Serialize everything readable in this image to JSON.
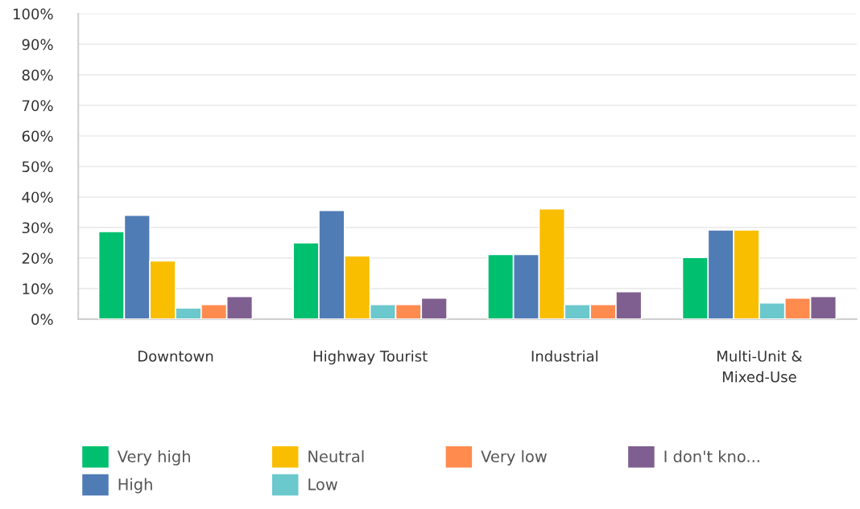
{
  "chart_data": {
    "type": "bar",
    "categories": [
      "Downtown",
      "Highway Tourist",
      "Industrial",
      "Multi-Unit &\nMixed-Use"
    ],
    "series": [
      {
        "name": "Very high",
        "color": "#00bf6f",
        "values": [
          28.7,
          25.0,
          21.2,
          20.2
        ]
      },
      {
        "name": "High",
        "color": "#507cb6",
        "values": [
          34.0,
          35.6,
          21.2,
          29.2
        ]
      },
      {
        "name": "Neutral",
        "color": "#f9be00",
        "values": [
          19.1,
          20.7,
          36.1,
          29.2
        ]
      },
      {
        "name": "Low",
        "color": "#6bc8cd",
        "values": [
          3.7,
          4.8,
          4.8,
          5.3
        ]
      },
      {
        "name": "Very low",
        "color": "#ff8b4f",
        "values": [
          4.8,
          4.8,
          4.8,
          6.9
        ]
      },
      {
        "name": "I don't kno...",
        "color": "#7f5f90",
        "values": [
          7.4,
          6.9,
          9.0,
          7.4
        ]
      }
    ],
    "ylim": [
      0,
      100
    ],
    "yticks": [
      {
        "value": 0,
        "label": "0%"
      },
      {
        "value": 10,
        "label": "10%"
      },
      {
        "value": 20,
        "label": "20%"
      },
      {
        "value": 30,
        "label": "30%"
      },
      {
        "value": 40,
        "label": "40%"
      },
      {
        "value": 50,
        "label": "50%"
      },
      {
        "value": 60,
        "label": "60%"
      },
      {
        "value": 70,
        "label": "70%"
      },
      {
        "value": 80,
        "label": "80%"
      },
      {
        "value": 90,
        "label": "90%"
      },
      {
        "value": 100,
        "label": "100%"
      }
    ],
    "grid": "y",
    "legend": "bottom"
  }
}
